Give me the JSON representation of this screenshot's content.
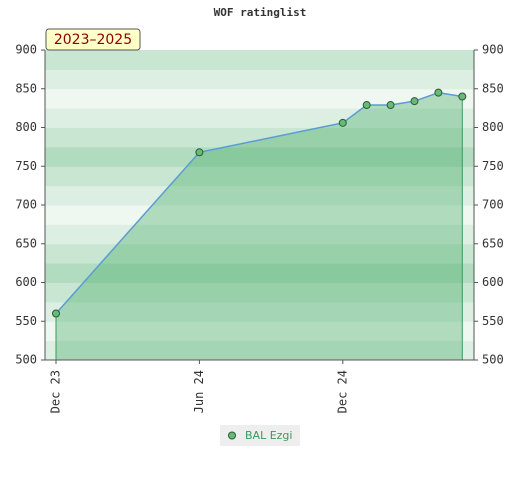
{
  "chart_data": {
    "type": "area",
    "title": "WOF ratinglist",
    "annotation": "2023–2025",
    "x": [
      0,
      6,
      12,
      13,
      14,
      15,
      16,
      17
    ],
    "xlim": [
      -0.46,
      17.49
    ],
    "xticks": [
      {
        "value": 0,
        "label": "Dec 23"
      },
      {
        "value": 6,
        "label": "Jun 24"
      },
      {
        "value": 12,
        "label": "Dec 24"
      }
    ],
    "ylim": [
      500,
      900
    ],
    "yticks": [
      500,
      550,
      600,
      650,
      700,
      750,
      800,
      850,
      900
    ],
    "y2lim": [
      500,
      900
    ],
    "y2ticks": [
      500,
      550,
      600,
      650,
      700,
      750,
      800,
      850,
      900
    ],
    "series": [
      {
        "name": "BAL Ezgi",
        "color": "#66bb77",
        "line_color": "#5b9bd5",
        "values": [
          560,
          768,
          806,
          829,
          829,
          834,
          845,
          840
        ]
      }
    ]
  }
}
